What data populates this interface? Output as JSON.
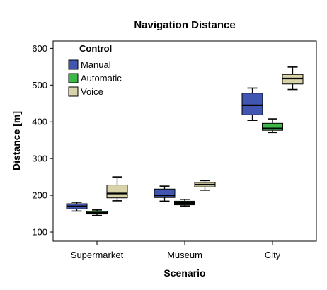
{
  "chart_data": {
    "type": "boxplot",
    "title": "Navigation Distance",
    "xlabel": "Scenario",
    "ylabel": "Distance [m]",
    "categories": [
      "Supermarket",
      "Museum",
      "City"
    ],
    "ylim": [
      75,
      620
    ],
    "yticks": [
      100,
      200,
      300,
      400,
      500,
      600
    ],
    "legend": {
      "title": "Control",
      "placement": "top-left"
    },
    "series": [
      {
        "name": "Manual",
        "color": "#4056b0",
        "boxes": [
          {
            "whisker_low": 157,
            "q1": 163,
            "median": 170,
            "q3": 177,
            "whisker_high": 181
          },
          {
            "whisker_low": 184,
            "q1": 194,
            "median": 200,
            "q3": 217,
            "whisker_high": 225
          },
          {
            "whisker_low": 404,
            "q1": 419,
            "median": 445,
            "q3": 478,
            "whisker_high": 492
          }
        ]
      },
      {
        "name": "Automatic",
        "color": "#3cb84a",
        "boxes": [
          {
            "whisker_low": 145,
            "q1": 149,
            "median": 152,
            "q3": 156,
            "whisker_high": 160
          },
          {
            "whisker_low": 171,
            "q1": 174,
            "median": 179,
            "q3": 184,
            "whisker_high": 189
          },
          {
            "whisker_low": 371,
            "q1": 377,
            "median": 382,
            "q3": 396,
            "whisker_high": 408
          }
        ]
      },
      {
        "name": "Voice",
        "color": "#d8d3a9",
        "boxes": [
          {
            "whisker_low": 185,
            "q1": 193,
            "median": 205,
            "q3": 228,
            "whisker_high": 250
          },
          {
            "whisker_low": 214,
            "q1": 223,
            "median": 229,
            "q3": 235,
            "whisker_high": 240
          },
          {
            "whisker_low": 488,
            "q1": 503,
            "median": 518,
            "q3": 529,
            "whisker_high": 549
          }
        ]
      }
    ]
  }
}
